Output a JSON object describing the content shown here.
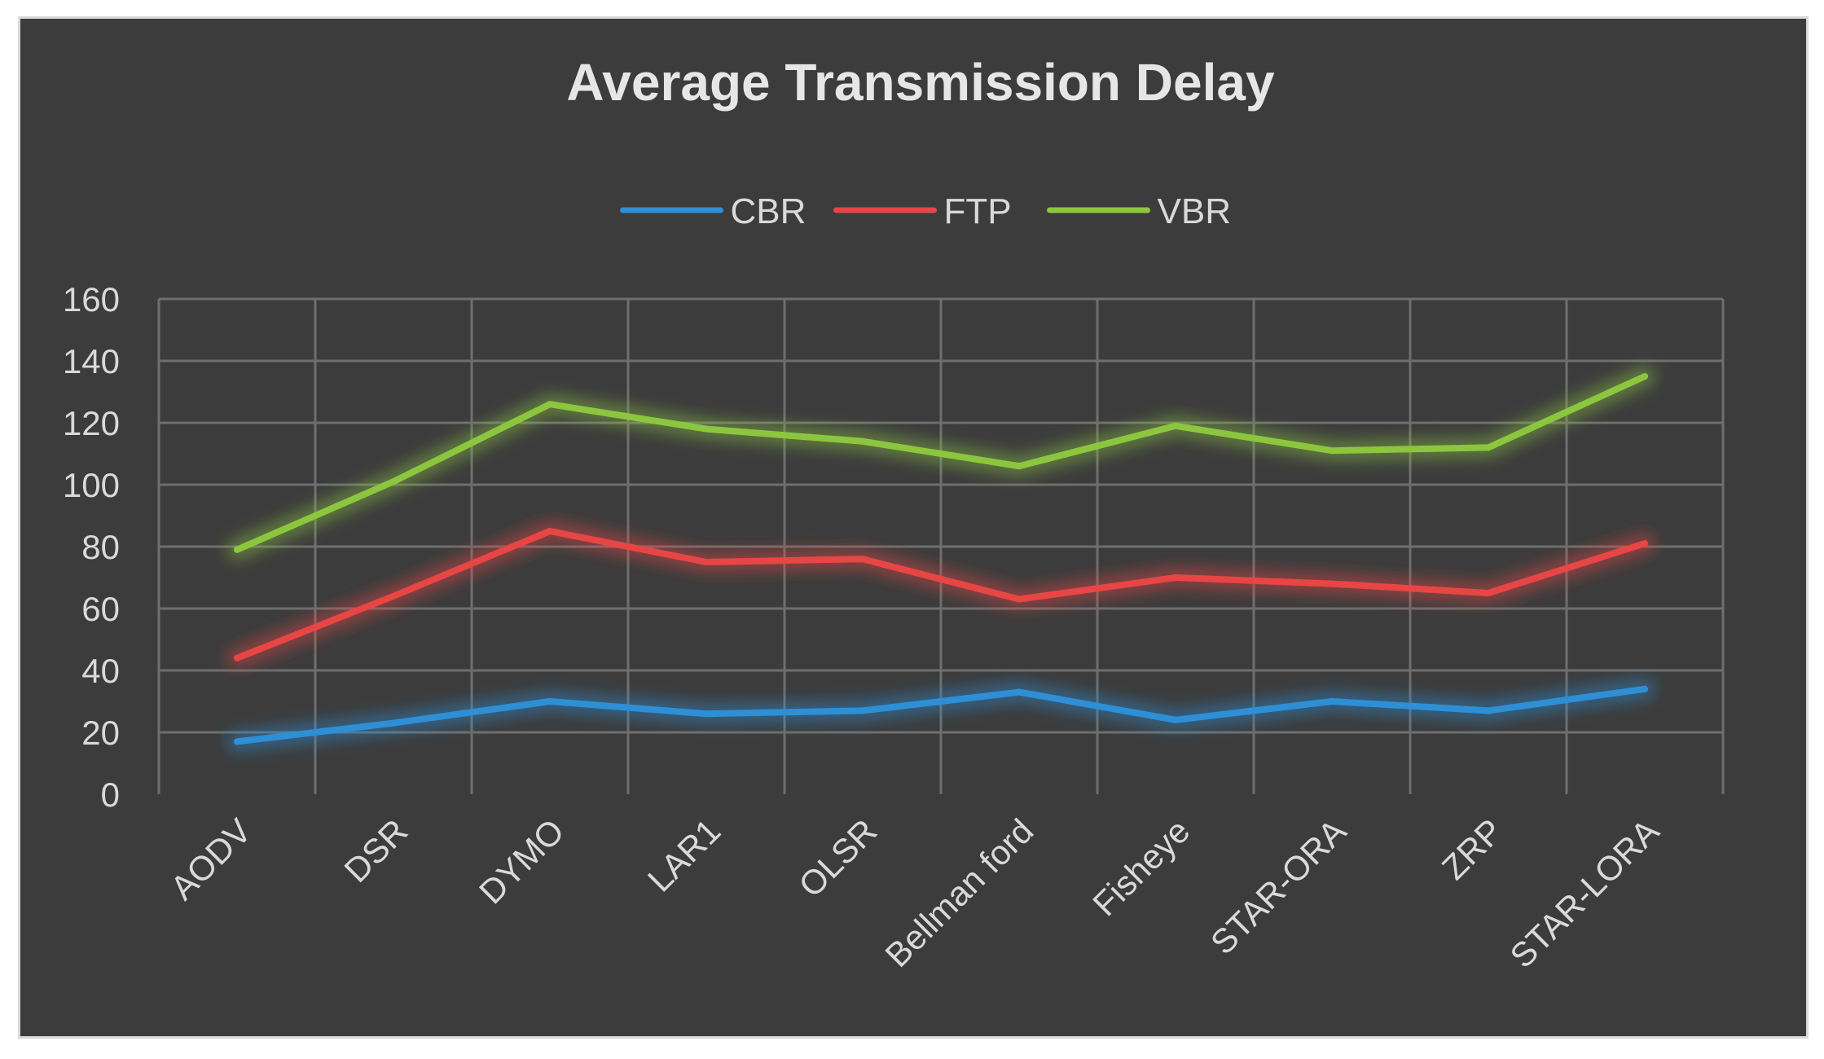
{
  "chart_data": {
    "type": "line",
    "title": "Average Transmission Delay",
    "categories": [
      "AODV",
      "DSR",
      "DYMO",
      "LAR1",
      "OLSR",
      "Bellman ford",
      "Fisheye",
      "STAR-ORA",
      "ZRP",
      "STAR-LORA"
    ],
    "series": [
      {
        "name": "CBR",
        "color": "#2e8fd6",
        "values": [
          17,
          23,
          30,
          26,
          27,
          33,
          24,
          30,
          27,
          34
        ]
      },
      {
        "name": "FTP",
        "color": "#e84545",
        "values": [
          44,
          64,
          85,
          75,
          76,
          63,
          70,
          68,
          65,
          81
        ]
      },
      {
        "name": "VBR",
        "color": "#8cc63f",
        "values": [
          79,
          101,
          126,
          118,
          114,
          106,
          119,
          111,
          112,
          135
        ]
      }
    ],
    "y_ticks": [
      "0",
      "20",
      "40",
      "60",
      "80",
      "100",
      "120",
      "140",
      "160"
    ],
    "ylim": [
      0,
      160
    ],
    "xlabel": "",
    "ylabel": "",
    "grid": true,
    "legend_position": "top"
  }
}
